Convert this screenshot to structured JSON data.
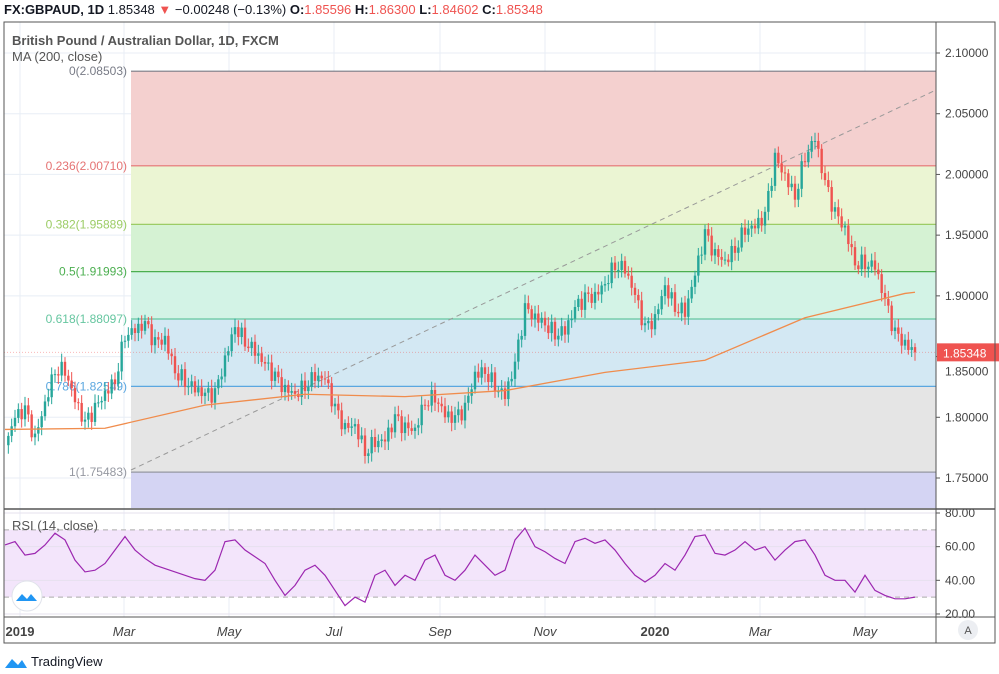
{
  "header": {
    "symbol": "FX:GBPAUD, 1D",
    "last": "1.85348",
    "change": "−0.00248 (−0.13%)",
    "o_label": "O:",
    "o": "1.85596",
    "h_label": "H:",
    "h": "1.86300",
    "l_label": "L:",
    "l": "1.84602",
    "c_label": "C:",
    "c": "1.85348"
  },
  "legend": {
    "title": "British Pound / Australian Dollar, 1D, FXCM",
    "ma": "MA (200, close)",
    "rsi": "RSI (14, close)"
  },
  "footer": {
    "brand": "TradingView"
  },
  "axis_button": "A",
  "colors": {
    "up": "#26a69a",
    "down": "#ef5350",
    "ma": "#f08c4c",
    "rsi": "#9c27b0",
    "last_bg": "#ef5350"
  },
  "chart_data": {
    "type": "candlestick",
    "title": "British Pound / Australian Dollar, 1D, FXCM",
    "note": "closes sampled approximately every 6 days",
    "yticks": [
      "2.10000",
      "2.05000",
      "2.00000",
      "1.95000",
      "1.90000",
      "1.85000",
      "1.80000",
      "1.75000"
    ],
    "ylim": [
      1.725,
      2.11
    ],
    "xticks": [
      "2019",
      "Mar",
      "May",
      "Jul",
      "Sep",
      "Nov",
      "2020",
      "Mar",
      "May"
    ],
    "last_price": "1.85348",
    "closes": [
      1.777,
      1.8,
      1.805,
      1.781,
      1.812,
      1.84,
      1.84,
      1.814,
      1.794,
      1.806,
      1.82,
      1.831,
      1.869,
      1.872,
      1.876,
      1.86,
      1.864,
      1.839,
      1.831,
      1.824,
      1.818,
      1.818,
      1.847,
      1.876,
      1.864,
      1.855,
      1.843,
      1.832,
      1.822,
      1.82,
      1.827,
      1.835,
      1.831,
      1.806,
      1.79,
      1.794,
      1.773,
      1.781,
      1.781,
      1.798,
      1.79,
      1.79,
      1.814,
      1.818,
      1.802,
      1.798,
      1.806,
      1.835,
      1.839,
      1.827,
      1.818,
      1.843,
      1.888,
      1.882,
      1.878,
      1.87,
      1.872,
      1.889,
      1.897,
      1.899,
      1.911,
      1.927,
      1.923,
      1.9,
      1.872,
      1.88,
      1.909,
      1.892,
      1.888,
      1.917,
      1.95,
      1.933,
      1.929,
      1.94,
      1.956,
      1.957,
      1.965,
      2.012,
      1.999,
      1.983,
      2.016,
      2.03,
      1.992,
      1.967,
      1.955,
      1.928,
      1.928,
      1.925,
      1.895,
      1.868,
      1.86,
      1.85348
    ],
    "ma200": [
      1.79,
      1.791,
      1.81,
      1.819,
      1.817,
      1.822,
      1.837,
      1.847,
      1.882,
      1.902,
      1.903
    ],
    "fib": {
      "levels": [
        {
          "ratio": "0",
          "price": "2.08503",
          "label": "0(2.08503)",
          "color": "#787b86",
          "fill": "#f4d0cf"
        },
        {
          "ratio": "0.236",
          "price": "2.00710",
          "label": "0.236(2.00710)",
          "color": "#e57373",
          "fill": "#ebf5d3"
        },
        {
          "ratio": "0.382",
          "price": "1.95889",
          "label": "0.382(1.95889)",
          "color": "#9ccc65",
          "fill": "#d5f2d3"
        },
        {
          "ratio": "0.5",
          "price": "1.91993",
          "label": "0.5(1.91993)",
          "color": "#4caf50",
          "fill": "#d3f3e6"
        },
        {
          "ratio": "0.618",
          "price": "1.88097",
          "label": "0.618(1.88097)",
          "color": "#66c6a0",
          "fill": "#d3e8f3"
        },
        {
          "ratio": "0.786",
          "price": "1.82549",
          "label": "0.786(1.82549)",
          "color": "#5ba7e0",
          "fill": "#e5e5e5"
        },
        {
          "ratio": "1",
          "price": "1.75483",
          "label": "1(1.75483)",
          "color": "#9598a1",
          "fill": "#d4d4f3"
        }
      ]
    },
    "rsi": {
      "yticks": [
        "80.00",
        "60.00",
        "40.00",
        "20.00"
      ],
      "bands": [
        70,
        30
      ],
      "values": [
        61,
        63,
        55,
        56,
        61,
        68,
        64,
        52,
        45,
        46,
        50,
        58,
        66,
        58,
        53,
        49,
        47,
        45,
        43,
        41,
        40,
        46,
        63,
        64,
        58,
        54,
        50,
        40,
        31,
        37,
        46,
        49,
        43,
        34,
        25,
        30,
        27,
        43,
        46,
        37,
        43,
        40,
        52,
        55,
        43,
        40,
        46,
        55,
        49,
        43,
        46,
        64,
        71,
        60,
        57,
        53,
        50,
        63,
        65,
        62,
        64,
        58,
        50,
        43,
        39,
        43,
        50,
        46,
        55,
        66,
        67,
        56,
        55,
        58,
        63,
        58,
        60,
        52,
        58,
        63,
        64,
        55,
        43,
        40,
        40,
        33,
        43,
        34,
        31,
        29,
        29,
        30
      ]
    }
  }
}
